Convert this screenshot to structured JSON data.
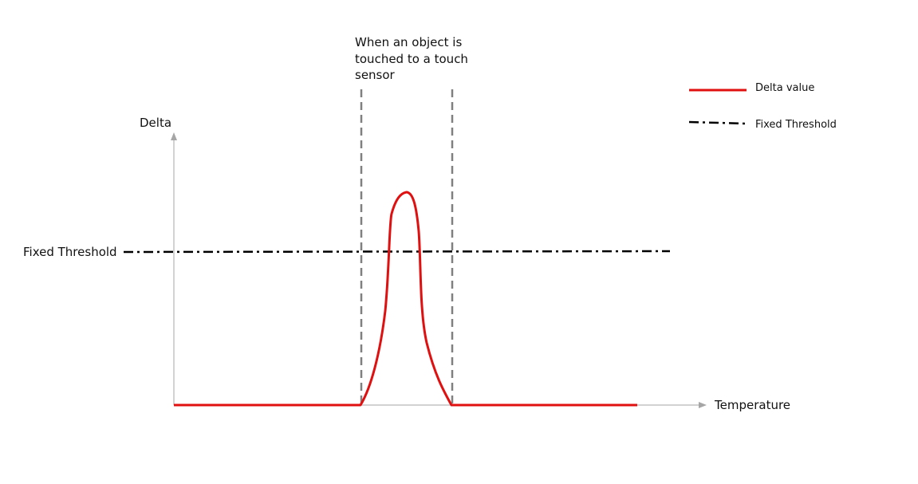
{
  "annotation": {
    "lines": [
      "When an object is",
      "touched to a touch",
      "sensor"
    ]
  },
  "axes": {
    "y_label": "Delta",
    "x_label": "Temperature"
  },
  "threshold": {
    "label": "Fixed Threshold"
  },
  "legend": {
    "placement": "top-right",
    "items": [
      {
        "label": "Delta value",
        "style": "solid",
        "color": "#e01010"
      },
      {
        "label": "Fixed Threshold",
        "style": "dash-dot",
        "color": "#000000"
      }
    ]
  },
  "colors": {
    "delta": "#e01010",
    "threshold": "#000000",
    "touch_markers": "#808080",
    "axis": "#a6a6a6"
  }
}
